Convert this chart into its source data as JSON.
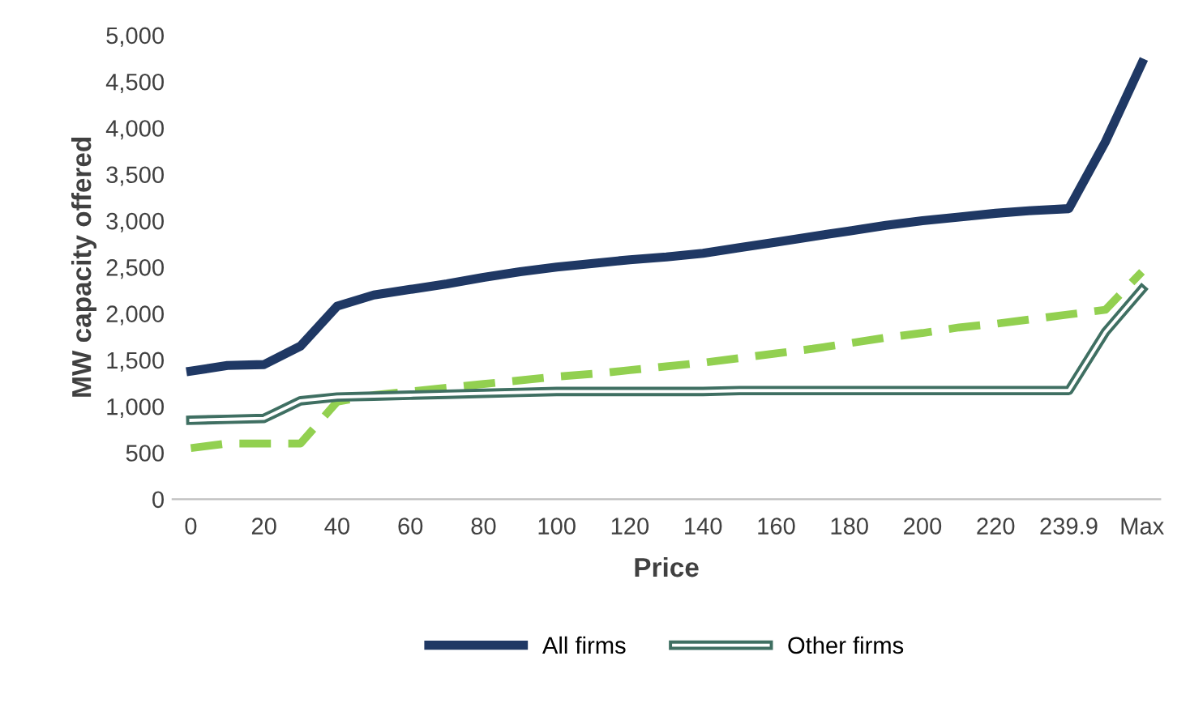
{
  "chart_data": {
    "type": "line",
    "xlabel": "Price",
    "ylabel": "MW capacity offered",
    "categories": [
      "0",
      null,
      "20",
      null,
      "40",
      null,
      "60",
      null,
      "80",
      null,
      "100",
      null,
      "120",
      null,
      "140",
      null,
      "160",
      null,
      "180",
      null,
      "200",
      null,
      "220",
      null,
      "239.9",
      null,
      "Max"
    ],
    "series": [
      {
        "name": "All firms",
        "color": "#1f3864",
        "line_style": "solid",
        "values": [
          1380,
          1440,
          1450,
          1650,
          2080,
          2200,
          2260,
          2320,
          2390,
          2450,
          2500,
          2540,
          2580,
          2610,
          2650,
          2710,
          2770,
          2830,
          2890,
          2950,
          3000,
          3040,
          3080,
          3110,
          3130,
          3850,
          4700
        ]
      },
      {
        "color": "#92d050",
        "line_style": "dashed",
        "values": [
          550,
          600,
          600,
          600,
          1050,
          1120,
          1160,
          1200,
          1240,
          1280,
          1320,
          1350,
          1390,
          1430,
          1470,
          1520,
          1570,
          1620,
          1680,
          1740,
          1790,
          1850,
          1890,
          1940,
          1990,
          2040,
          2450
        ]
      },
      {
        "name": "Other firms",
        "color": "#3f6f62",
        "line_style": "solid",
        "values": [
          850,
          860,
          870,
          1060,
          1100,
          1110,
          1120,
          1130,
          1140,
          1150,
          1160,
          1160,
          1160,
          1160,
          1160,
          1170,
          1170,
          1170,
          1170,
          1170,
          1170,
          1170,
          1170,
          1170,
          1170,
          1800,
          2260
        ]
      }
    ],
    "ylim": [
      0,
      5000
    ],
    "yticks": [
      0,
      500,
      {
        "value": 1000,
        "label": "1,000"
      },
      {
        "value": 1500,
        "label": "1,500"
      },
      {
        "value": 2000,
        "label": "2,000"
      },
      {
        "value": 2500,
        "label": "2,500"
      },
      {
        "value": 3000,
        "label": "3,000"
      },
      {
        "value": 3500,
        "label": "3,500"
      },
      {
        "value": 4000,
        "label": "4,000"
      },
      {
        "value": 4500,
        "label": "4,500"
      },
      {
        "value": 5000,
        "label": "5,000"
      }
    ],
    "grid": false,
    "legend": "bottom",
    "marker": "none"
  }
}
